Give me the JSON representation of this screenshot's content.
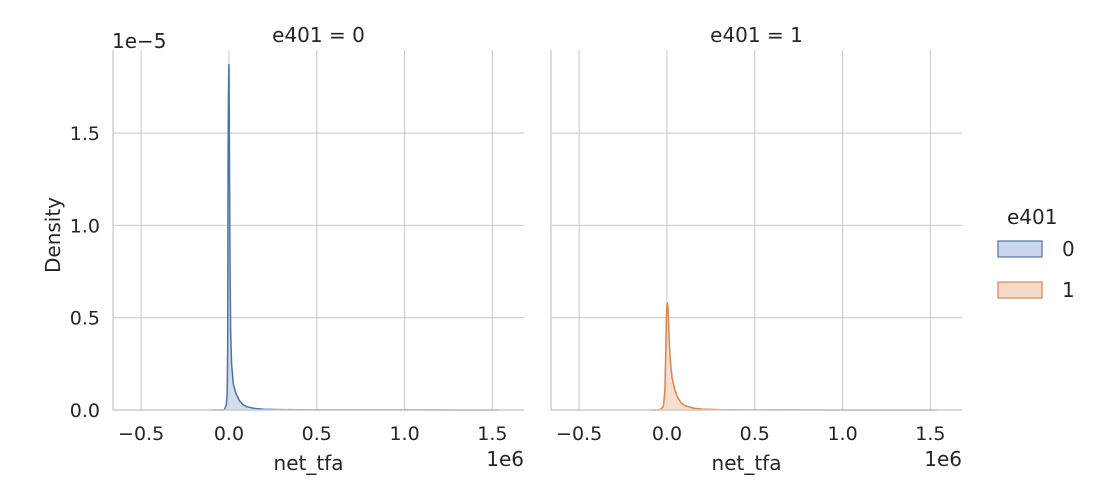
{
  "chart_data": {
    "type": "area",
    "facet_variable": "e401",
    "panels": [
      {
        "title": "e401 = 0",
        "series": [
          {
            "name": "0",
            "color": "#4c72b0",
            "fill": "#ccd6ea",
            "points": [
              [
                -100000,
                0.0
              ],
              [
                -40000,
                0.0
              ],
              [
                -25000,
                0.003
              ],
              [
                -15000,
                0.03
              ],
              [
                -10000,
                0.09
              ],
              [
                -7000,
                0.35
              ],
              [
                -5000,
                1.3
              ],
              [
                -3000,
                1.66
              ],
              [
                -1000,
                1.85
              ],
              [
                0,
                1.87
              ],
              [
                1000,
                1.8
              ],
              [
                3000,
                1.4
              ],
              [
                6000,
                0.8
              ],
              [
                10000,
                0.42
              ],
              [
                15000,
                0.25
              ],
              [
                25000,
                0.14
              ],
              [
                40000,
                0.09
              ],
              [
                60000,
                0.05
              ],
              [
                80000,
                0.03
              ],
              [
                100000,
                0.018
              ],
              [
                150000,
                0.008
              ],
              [
                200000,
                0.004
              ],
              [
                300000,
                0.002
              ],
              [
                500000,
                0.001
              ],
              [
                1000000,
                0.0004
              ],
              [
                1350000,
                0.0
              ],
              [
                1536000,
                0.0
              ]
            ]
          }
        ]
      },
      {
        "title": "e401 = 1",
        "series": [
          {
            "name": "1",
            "color": "#dd8452",
            "fill": "#f6d9c8",
            "points": [
              [
                -100000,
                0.0
              ],
              [
                -60000,
                0.0
              ],
              [
                -35000,
                0.004
              ],
              [
                -20000,
                0.02
              ],
              [
                -12000,
                0.1
              ],
              [
                -7000,
                0.3
              ],
              [
                -3000,
                0.5
              ],
              [
                0,
                0.57
              ],
              [
                3000,
                0.58
              ],
              [
                6000,
                0.55
              ],
              [
                10000,
                0.45
              ],
              [
                15000,
                0.34
              ],
              [
                20000,
                0.26
              ],
              [
                30000,
                0.17
              ],
              [
                45000,
                0.11
              ],
              [
                60000,
                0.07
              ],
              [
                80000,
                0.04
              ],
              [
                100000,
                0.025
              ],
              [
                150000,
                0.01
              ],
              [
                200000,
                0.005
              ],
              [
                300000,
                0.002
              ],
              [
                500000,
                0.001
              ],
              [
                1000000,
                0.0003
              ],
              [
                1536000,
                0.0
              ]
            ]
          }
        ]
      }
    ],
    "xlabel": "net_tfa",
    "x_offset_label": "1e6",
    "ylabel": "Density",
    "y_offset_label": "1e−5",
    "xlim": [
      -0.66,
      1.68
    ],
    "ylim": [
      0,
      1.95
    ],
    "xticks": [
      -0.5,
      0.0,
      0.5,
      1.0,
      1.5
    ],
    "xtick_labels": [
      "−0.5",
      "0.0",
      "0.5",
      "1.0",
      "1.5"
    ],
    "yticks": [
      0.0,
      0.5,
      1.0,
      1.5
    ],
    "ytick_labels": [
      "0.0",
      "0.5",
      "1.0",
      "1.5"
    ],
    "grid": true,
    "legend": {
      "title": "e401",
      "placement": "right",
      "entries": [
        {
          "label": "0",
          "color": "#4c72b0",
          "fill": "#ccd6ea"
        },
        {
          "label": "1",
          "color": "#dd8452",
          "fill": "#f6d9c8"
        }
      ]
    }
  }
}
